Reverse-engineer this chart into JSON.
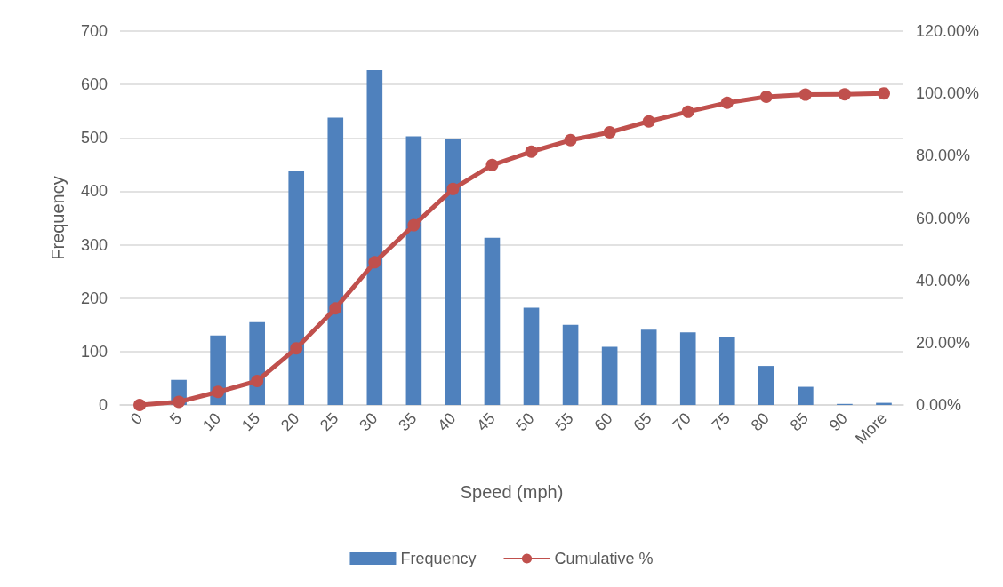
{
  "chart_data": {
    "type": "bar",
    "xlabel": "Speed (mph)",
    "ylabel": "Frequency",
    "categories": [
      "0",
      "5",
      "10",
      "15",
      "20",
      "25",
      "30",
      "35",
      "40",
      "45",
      "50",
      "55",
      "60",
      "65",
      "70",
      "75",
      "80",
      "85",
      "90",
      "More"
    ],
    "series": [
      {
        "name": "Frequency",
        "color": "#4f81bd",
        "values": [
          0,
          47,
          130,
          155,
          438,
          538,
          627,
          503,
          497,
          313,
          182,
          150,
          109,
          141,
          136,
          128,
          73,
          34,
          2,
          4
        ]
      },
      {
        "name": "Cumulative %",
        "type": "line",
        "axis": "y2",
        "color": "#c0504d",
        "marker": "circle",
        "values": [
          0,
          1.0,
          4.2,
          7.7,
          18.2,
          31.0,
          45.8,
          57.7,
          69.3,
          77.0,
          81.3,
          85.0,
          87.5,
          91.0,
          94.1,
          97.0,
          98.9,
          99.6,
          99.7,
          100
        ]
      }
    ],
    "ylim": [
      0,
      700
    ],
    "yticks": [
      0,
      100,
      200,
      300,
      400,
      500,
      600,
      700
    ],
    "y2lim": [
      0,
      120
    ],
    "y2ticks": [
      {
        "value": 0,
        "label": "0.00%"
      },
      {
        "value": 20,
        "label": "20.00%"
      },
      {
        "value": 40,
        "label": "40.00%"
      },
      {
        "value": 60,
        "label": "60.00%"
      },
      {
        "value": 80,
        "label": "80.00%"
      },
      {
        "value": 100,
        "label": "100.00%"
      },
      {
        "value": 120,
        "label": "120.00%"
      }
    ],
    "grid": "y",
    "legend": "bottom"
  }
}
